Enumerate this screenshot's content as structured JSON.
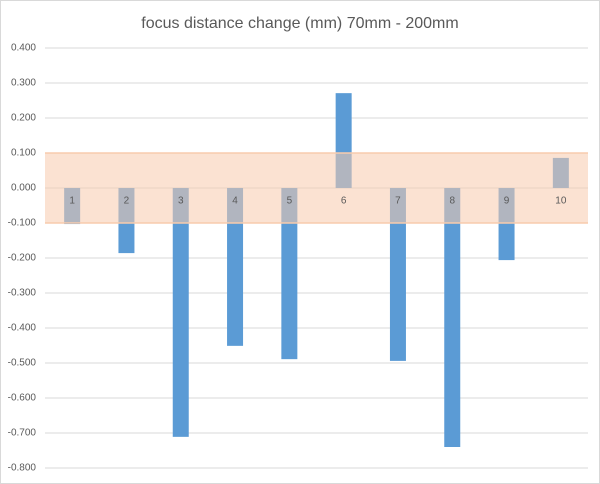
{
  "chart_data": {
    "type": "bar",
    "title": "focus distance change (mm) 70mm - 200mm",
    "categories": [
      "1",
      "2",
      "3",
      "4",
      "5",
      "6",
      "7",
      "8",
      "9",
      "10"
    ],
    "values": [
      -0.103,
      -0.186,
      -0.711,
      -0.451,
      -0.489,
      0.271,
      -0.494,
      -0.74,
      -0.206,
      0.086
    ],
    "color": "#5b9bd5",
    "band": [
      -0.1,
      0.1
    ],
    "band_color": "#f8cbad",
    "ylim": [
      -0.8,
      0.4
    ],
    "yticks": [
      {
        "value": -0.8,
        "label": "-0.800"
      },
      {
        "value": -0.7,
        "label": "-0.700"
      },
      {
        "value": -0.6,
        "label": "-0.600"
      },
      {
        "value": -0.5,
        "label": "-0.500"
      },
      {
        "value": -0.4,
        "label": "-0.400"
      },
      {
        "value": -0.3,
        "label": "-0.300"
      },
      {
        "value": -0.2,
        "label": "-0.200"
      },
      {
        "value": -0.1,
        "label": "-0.100"
      },
      {
        "value": 0,
        "label": "0.000"
      },
      {
        "value": 0.1,
        "label": "0.100"
      },
      {
        "value": 0.2,
        "label": "0.200"
      },
      {
        "value": 0.3,
        "label": "0.300"
      },
      {
        "value": 0.4,
        "label": "0.400"
      }
    ],
    "grid": true
  }
}
